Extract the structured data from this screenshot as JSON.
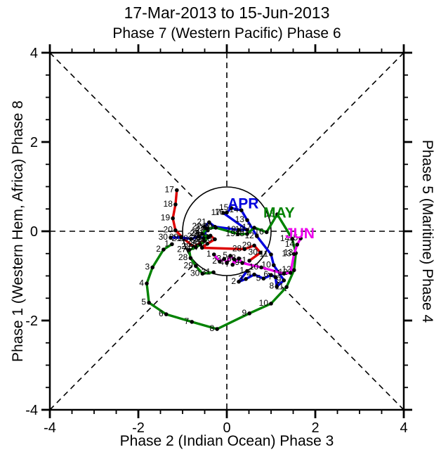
{
  "chart_data": {
    "type": "line",
    "title": "17-Mar-2013 to 15-Jun-2013",
    "subtitle_top": "Phase 7 (Western Pacific) Phase 6",
    "xlabel": "Phase 2 (Indian Ocean) Phase 3",
    "ylabel_left": "Phase 1 (Western Hem, Africa) Phase 8",
    "ylabel_right": "Phase 5 (Maritime) Phase 4",
    "xlim": [
      -4,
      4
    ],
    "ylim": [
      -4,
      4
    ],
    "major_ticks": [
      -4,
      -2,
      0,
      2,
      4
    ],
    "major_tick_labels": [
      "-4",
      "-2",
      "0",
      "2",
      "4"
    ],
    "minor_tick_step": 0.5,
    "grid": "dashed crosshair and corner diagonals, interrupted by unit circle",
    "unit_circle_radius": 1,
    "axis_color": "#000000",
    "legend_position": "in-plot month labels",
    "series": [
      {
        "name": "MAR",
        "color": "#dd0000",
        "month_label": null,
        "points": [
          [
            17,
            -1.13,
            0.92
          ],
          [
            18,
            -1.16,
            0.6
          ],
          [
            19,
            -1.22,
            0.29
          ],
          [
            20,
            -1.16,
            0.02
          ],
          [
            21,
            -0.97,
            -0.17
          ],
          [
            22,
            -0.75,
            -0.35
          ],
          [
            23,
            -0.49,
            -0.2
          ],
          [
            24,
            -0.37,
            -0.1
          ],
          [
            25,
            -0.27,
            -0.18
          ],
          [
            26,
            -0.44,
            -0.28
          ],
          [
            27,
            -0.56,
            -0.37
          ],
          [
            28,
            0.4,
            -0.4
          ],
          [
            29,
            0.62,
            -0.32
          ],
          [
            30,
            0.76,
            -0.48
          ],
          [
            31,
            0.51,
            -0.66
          ]
        ]
      },
      {
        "name": "APR",
        "color": "#0000dd",
        "month_label": {
          "text": "APR",
          "x": 0.37,
          "y": 0.62
        },
        "points": [
          [
            1,
            0.46,
            -0.89
          ],
          [
            2,
            0.27,
            -1.13
          ],
          [
            3,
            0.43,
            -1.07
          ],
          [
            4,
            0.62,
            -0.97
          ],
          [
            5,
            0.83,
            -1.06
          ],
          [
            6,
            1.0,
            -0.98
          ],
          [
            7,
            1.1,
            -1.03
          ],
          [
            8,
            1.13,
            -1.24
          ],
          [
            9,
            1.29,
            -1.1
          ],
          [
            10,
            1.06,
            -0.76
          ],
          [
            11,
            1.0,
            -0.52
          ],
          [
            12,
            0.68,
            -0.11
          ],
          [
            13,
            0.46,
            0.25
          ],
          [
            14,
            0.33,
            0.47
          ],
          [
            15,
            0.1,
            0.52
          ],
          [
            16,
            0.0,
            0.42
          ],
          [
            17,
            -0.08,
            0.41
          ],
          [
            18,
            0.46,
            0.03
          ],
          [
            19,
            0.27,
            0.03
          ],
          [
            20,
            -0.27,
            0.1
          ],
          [
            21,
            -0.4,
            0.2
          ],
          [
            22,
            -0.51,
            0.1
          ],
          [
            23,
            -0.43,
            0.02
          ],
          [
            24,
            -0.54,
            -0.04
          ],
          [
            25,
            -0.44,
            -0.11
          ],
          [
            26,
            -0.52,
            -0.16
          ],
          [
            27,
            -0.62,
            -0.12
          ],
          [
            28,
            -0.81,
            -0.17
          ],
          [
            29,
            -1.03,
            -0.14
          ],
          [
            30,
            -1.27,
            -0.14
          ]
        ]
      },
      {
        "name": "MAY",
        "color": "#008200",
        "month_label": {
          "text": "MAY",
          "x": 1.18,
          "y": 0.42
        },
        "points": [
          [
            1,
            -1.24,
            -0.29
          ],
          [
            2,
            -1.43,
            -0.41
          ],
          [
            3,
            -1.68,
            -0.81
          ],
          [
            4,
            -1.81,
            -1.17
          ],
          [
            5,
            -1.76,
            -1.6
          ],
          [
            6,
            -1.37,
            -1.86
          ],
          [
            7,
            -0.79,
            -2.03
          ],
          [
            8,
            -0.22,
            -2.19
          ],
          [
            9,
            0.51,
            -1.84
          ],
          [
            10,
            1.0,
            -1.62
          ],
          [
            11,
            1.35,
            -1.25
          ],
          [
            12,
            1.52,
            -0.87
          ],
          [
            13,
            1.56,
            -0.49
          ],
          [
            14,
            1.48,
            -0.17
          ],
          [
            15,
            1.14,
            0.38
          ],
          [
            16,
            0.9,
            -0.02
          ],
          [
            17,
            0.62,
            0.08
          ],
          [
            18,
            0.46,
            -0.06
          ],
          [
            19,
            0.25,
            -0.06
          ],
          [
            20,
            -0.25,
            0.08
          ],
          [
            21,
            -0.45,
            0.06
          ],
          [
            22,
            -0.56,
            -0.06
          ],
          [
            23,
            -0.42,
            -0.14
          ],
          [
            24,
            -0.51,
            -0.22
          ],
          [
            25,
            -0.6,
            -0.3
          ],
          [
            26,
            -0.7,
            -0.36
          ],
          [
            27,
            -0.85,
            -0.42
          ],
          [
            28,
            -0.82,
            -0.6
          ],
          [
            29,
            -0.7,
            -0.78
          ],
          [
            30,
            -0.55,
            -0.95
          ],
          [
            31,
            -0.3,
            -0.92
          ]
        ]
      },
      {
        "name": "JUN",
        "color": "#ee00ee",
        "month_label": {
          "text": "JUN",
          "x": 1.65,
          "y": -0.05
        },
        "points": [
          [
            1,
            -0.29,
            -0.52
          ],
          [
            2,
            -0.16,
            -0.68
          ],
          [
            3,
            -0.06,
            -0.62
          ],
          [
            4,
            0.0,
            -0.71
          ],
          [
            5,
            0.08,
            -0.55
          ],
          [
            6,
            0.17,
            -0.63
          ],
          [
            7,
            0.13,
            -0.75
          ],
          [
            8,
            0.27,
            -0.61
          ],
          [
            9,
            0.35,
            -0.71
          ],
          [
            10,
            0.78,
            -0.81
          ],
          [
            11,
            1.29,
            -0.95
          ],
          [
            12,
            1.44,
            -0.93
          ],
          [
            13,
            1.52,
            -0.51
          ],
          [
            14,
            1.59,
            -0.3
          ],
          [
            15,
            1.67,
            -0.16
          ]
        ]
      }
    ]
  }
}
